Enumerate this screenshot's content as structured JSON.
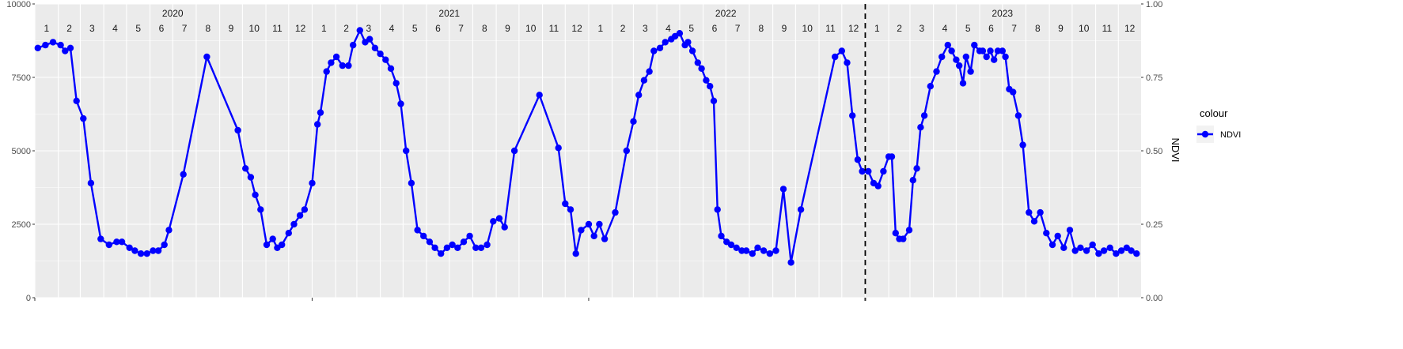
{
  "chart_data": {
    "type": "line",
    "y_left": {
      "ylim": [
        0,
        10000
      ],
      "ticks": [
        "0",
        "2500",
        "5000",
        "7500",
        "10000"
      ],
      "tick_values": [
        0,
        2500,
        5000,
        7500,
        10000
      ]
    },
    "y_right": {
      "label": "NDVI",
      "ylim": [
        0,
        1
      ],
      "ticks": [
        "0.00",
        "0.25",
        "0.50",
        "0.75",
        "1.00"
      ],
      "tick_values": [
        0,
        0.25,
        0.5,
        0.75,
        1.0
      ]
    },
    "x_range": [
      "2020-01-01",
      "2023-12-31"
    ],
    "year_labels": [
      {
        "label": "2020",
        "date": "2020-07-01"
      },
      {
        "label": "2021",
        "date": "2021-07-01"
      },
      {
        "label": "2022",
        "date": "2022-07-01"
      },
      {
        "label": "2023",
        "date": "2023-07-01"
      }
    ],
    "month_labels": [
      "1",
      "2",
      "3",
      "4",
      "5",
      "6",
      "7",
      "8",
      "9",
      "10",
      "11",
      "12"
    ],
    "vline": {
      "date": "2023-01-01",
      "style": "dashed"
    },
    "grid": true,
    "legend": {
      "title": "colour",
      "position": "right"
    },
    "series": [
      {
        "name": "NDVI",
        "color": "#0000ff",
        "axis": "right",
        "points": [
          [
            "2020-01-05",
            0.85
          ],
          [
            "2020-01-15",
            0.86
          ],
          [
            "2020-01-25",
            0.87
          ],
          [
            "2020-02-04",
            0.86
          ],
          [
            "2020-02-10",
            0.84
          ],
          [
            "2020-02-17",
            0.85
          ],
          [
            "2020-02-25",
            0.67
          ],
          [
            "2020-03-05",
            0.61
          ],
          [
            "2020-03-15",
            0.39
          ],
          [
            "2020-03-28",
            0.2
          ],
          [
            "2020-04-08",
            0.18
          ],
          [
            "2020-04-18",
            0.19
          ],
          [
            "2020-04-25",
            0.19
          ],
          [
            "2020-05-05",
            0.17
          ],
          [
            "2020-05-12",
            0.16
          ],
          [
            "2020-05-20",
            0.15
          ],
          [
            "2020-05-28",
            0.15
          ],
          [
            "2020-06-05",
            0.16
          ],
          [
            "2020-06-12",
            0.16
          ],
          [
            "2020-06-20",
            0.18
          ],
          [
            "2020-06-26",
            0.23
          ],
          [
            "2020-07-15",
            0.42
          ],
          [
            "2020-08-15",
            0.82
          ],
          [
            "2020-09-25",
            0.57
          ],
          [
            "2020-10-05",
            0.44
          ],
          [
            "2020-10-12",
            0.41
          ],
          [
            "2020-10-18",
            0.35
          ],
          [
            "2020-10-25",
            0.3
          ],
          [
            "2020-11-02",
            0.18
          ],
          [
            "2020-11-10",
            0.2
          ],
          [
            "2020-11-16",
            0.17
          ],
          [
            "2020-11-22",
            0.18
          ],
          [
            "2020-12-01",
            0.22
          ],
          [
            "2020-12-08",
            0.25
          ],
          [
            "2020-12-16",
            0.28
          ],
          [
            "2020-12-22",
            0.3
          ],
          [
            "2021-01-01",
            0.39
          ],
          [
            "2021-01-08",
            0.59
          ],
          [
            "2021-01-12",
            0.63
          ],
          [
            "2021-01-20",
            0.77
          ],
          [
            "2021-01-26",
            0.8
          ],
          [
            "2021-02-02",
            0.82
          ],
          [
            "2021-02-10",
            0.79
          ],
          [
            "2021-02-18",
            0.79
          ],
          [
            "2021-02-24",
            0.86
          ],
          [
            "2021-03-05",
            0.91
          ],
          [
            "2021-03-12",
            0.87
          ],
          [
            "2021-03-18",
            0.88
          ],
          [
            "2021-03-25",
            0.85
          ],
          [
            "2021-04-01",
            0.83
          ],
          [
            "2021-04-08",
            0.81
          ],
          [
            "2021-04-15",
            0.78
          ],
          [
            "2021-04-22",
            0.73
          ],
          [
            "2021-04-28",
            0.66
          ],
          [
            "2021-05-05",
            0.5
          ],
          [
            "2021-05-12",
            0.39
          ],
          [
            "2021-05-20",
            0.23
          ],
          [
            "2021-05-28",
            0.21
          ],
          [
            "2021-06-05",
            0.19
          ],
          [
            "2021-06-12",
            0.17
          ],
          [
            "2021-06-20",
            0.15
          ],
          [
            "2021-06-28",
            0.17
          ],
          [
            "2021-07-05",
            0.18
          ],
          [
            "2021-07-12",
            0.17
          ],
          [
            "2021-07-20",
            0.19
          ],
          [
            "2021-07-28",
            0.21
          ],
          [
            "2021-08-05",
            0.17
          ],
          [
            "2021-08-12",
            0.17
          ],
          [
            "2021-08-20",
            0.18
          ],
          [
            "2021-08-28",
            0.26
          ],
          [
            "2021-09-05",
            0.27
          ],
          [
            "2021-09-12",
            0.24
          ],
          [
            "2021-09-25",
            0.5
          ],
          [
            "2021-10-28",
            0.69
          ],
          [
            "2021-11-22",
            0.51
          ],
          [
            "2021-12-01",
            0.32
          ],
          [
            "2021-12-08",
            0.3
          ],
          [
            "2021-12-15",
            0.15
          ],
          [
            "2021-12-22",
            0.23
          ],
          [
            "2022-01-01",
            0.25
          ],
          [
            "2022-01-08",
            0.21
          ],
          [
            "2022-01-15",
            0.25
          ],
          [
            "2022-01-22",
            0.2
          ],
          [
            "2022-02-05",
            0.29
          ],
          [
            "2022-02-20",
            0.5
          ],
          [
            "2022-03-01",
            0.6
          ],
          [
            "2022-03-08",
            0.69
          ],
          [
            "2022-03-15",
            0.74
          ],
          [
            "2022-03-22",
            0.77
          ],
          [
            "2022-03-28",
            0.84
          ],
          [
            "2022-04-05",
            0.85
          ],
          [
            "2022-04-12",
            0.87
          ],
          [
            "2022-04-20",
            0.88
          ],
          [
            "2022-04-25",
            0.89
          ],
          [
            "2022-05-01",
            0.9
          ],
          [
            "2022-05-08",
            0.86
          ],
          [
            "2022-05-12",
            0.87
          ],
          [
            "2022-05-18",
            0.84
          ],
          [
            "2022-05-25",
            0.8
          ],
          [
            "2022-05-30",
            0.78
          ],
          [
            "2022-06-05",
            0.74
          ],
          [
            "2022-06-10",
            0.72
          ],
          [
            "2022-06-15",
            0.67
          ],
          [
            "2022-06-20",
            0.3
          ],
          [
            "2022-06-25",
            0.21
          ],
          [
            "2022-07-02",
            0.19
          ],
          [
            "2022-07-08",
            0.18
          ],
          [
            "2022-07-15",
            0.17
          ],
          [
            "2022-07-22",
            0.16
          ],
          [
            "2022-07-28",
            0.16
          ],
          [
            "2022-08-05",
            0.15
          ],
          [
            "2022-08-12",
            0.17
          ],
          [
            "2022-08-20",
            0.16
          ],
          [
            "2022-08-28",
            0.15
          ],
          [
            "2022-09-05",
            0.16
          ],
          [
            "2022-09-15",
            0.37
          ],
          [
            "2022-09-25",
            0.12
          ],
          [
            "2022-10-08",
            0.3
          ],
          [
            "2022-11-22",
            0.82
          ],
          [
            "2022-12-01",
            0.84
          ],
          [
            "2022-12-08",
            0.8
          ],
          [
            "2022-12-15",
            0.62
          ],
          [
            "2022-12-22",
            0.47
          ],
          [
            "2022-12-28",
            0.43
          ],
          [
            "2023-01-05",
            0.43
          ],
          [
            "2023-01-12",
            0.39
          ],
          [
            "2023-01-18",
            0.38
          ],
          [
            "2023-01-25",
            0.43
          ],
          [
            "2023-02-01",
            0.48
          ],
          [
            "2023-02-05",
            0.48
          ],
          [
            "2023-02-10",
            0.22
          ],
          [
            "2023-02-15",
            0.2
          ],
          [
            "2023-02-20",
            0.2
          ],
          [
            "2023-02-28",
            0.23
          ],
          [
            "2023-03-05",
            0.4
          ],
          [
            "2023-03-10",
            0.44
          ],
          [
            "2023-03-15",
            0.58
          ],
          [
            "2023-03-20",
            0.62
          ],
          [
            "2023-03-28",
            0.72
          ],
          [
            "2023-04-05",
            0.77
          ],
          [
            "2023-04-12",
            0.82
          ],
          [
            "2023-04-20",
            0.86
          ],
          [
            "2023-04-25",
            0.84
          ],
          [
            "2023-05-01",
            0.81
          ],
          [
            "2023-05-05",
            0.79
          ],
          [
            "2023-05-10",
            0.73
          ],
          [
            "2023-05-14",
            0.82
          ],
          [
            "2023-05-20",
            0.77
          ],
          [
            "2023-05-25",
            0.86
          ],
          [
            "2023-06-01",
            0.84
          ],
          [
            "2023-06-05",
            0.84
          ],
          [
            "2023-06-10",
            0.82
          ],
          [
            "2023-06-15",
            0.84
          ],
          [
            "2023-06-20",
            0.81
          ],
          [
            "2023-06-25",
            0.84
          ],
          [
            "2023-07-01",
            0.84
          ],
          [
            "2023-07-05",
            0.82
          ],
          [
            "2023-07-10",
            0.71
          ],
          [
            "2023-07-15",
            0.7
          ],
          [
            "2023-07-22",
            0.62
          ],
          [
            "2023-07-28",
            0.52
          ],
          [
            "2023-08-05",
            0.29
          ],
          [
            "2023-08-12",
            0.26
          ],
          [
            "2023-08-20",
            0.29
          ],
          [
            "2023-08-28",
            0.22
          ],
          [
            "2023-09-05",
            0.18
          ],
          [
            "2023-09-12",
            0.21
          ],
          [
            "2023-09-20",
            0.17
          ],
          [
            "2023-09-28",
            0.23
          ],
          [
            "2023-10-05",
            0.16
          ],
          [
            "2023-10-12",
            0.17
          ],
          [
            "2023-10-20",
            0.16
          ],
          [
            "2023-10-28",
            0.18
          ],
          [
            "2023-11-05",
            0.15
          ],
          [
            "2023-11-12",
            0.16
          ],
          [
            "2023-11-20",
            0.17
          ],
          [
            "2023-11-28",
            0.15
          ],
          [
            "2023-12-05",
            0.16
          ],
          [
            "2023-12-12",
            0.17
          ],
          [
            "2023-12-18",
            0.16
          ],
          [
            "2023-12-25",
            0.15
          ]
        ]
      }
    ]
  }
}
